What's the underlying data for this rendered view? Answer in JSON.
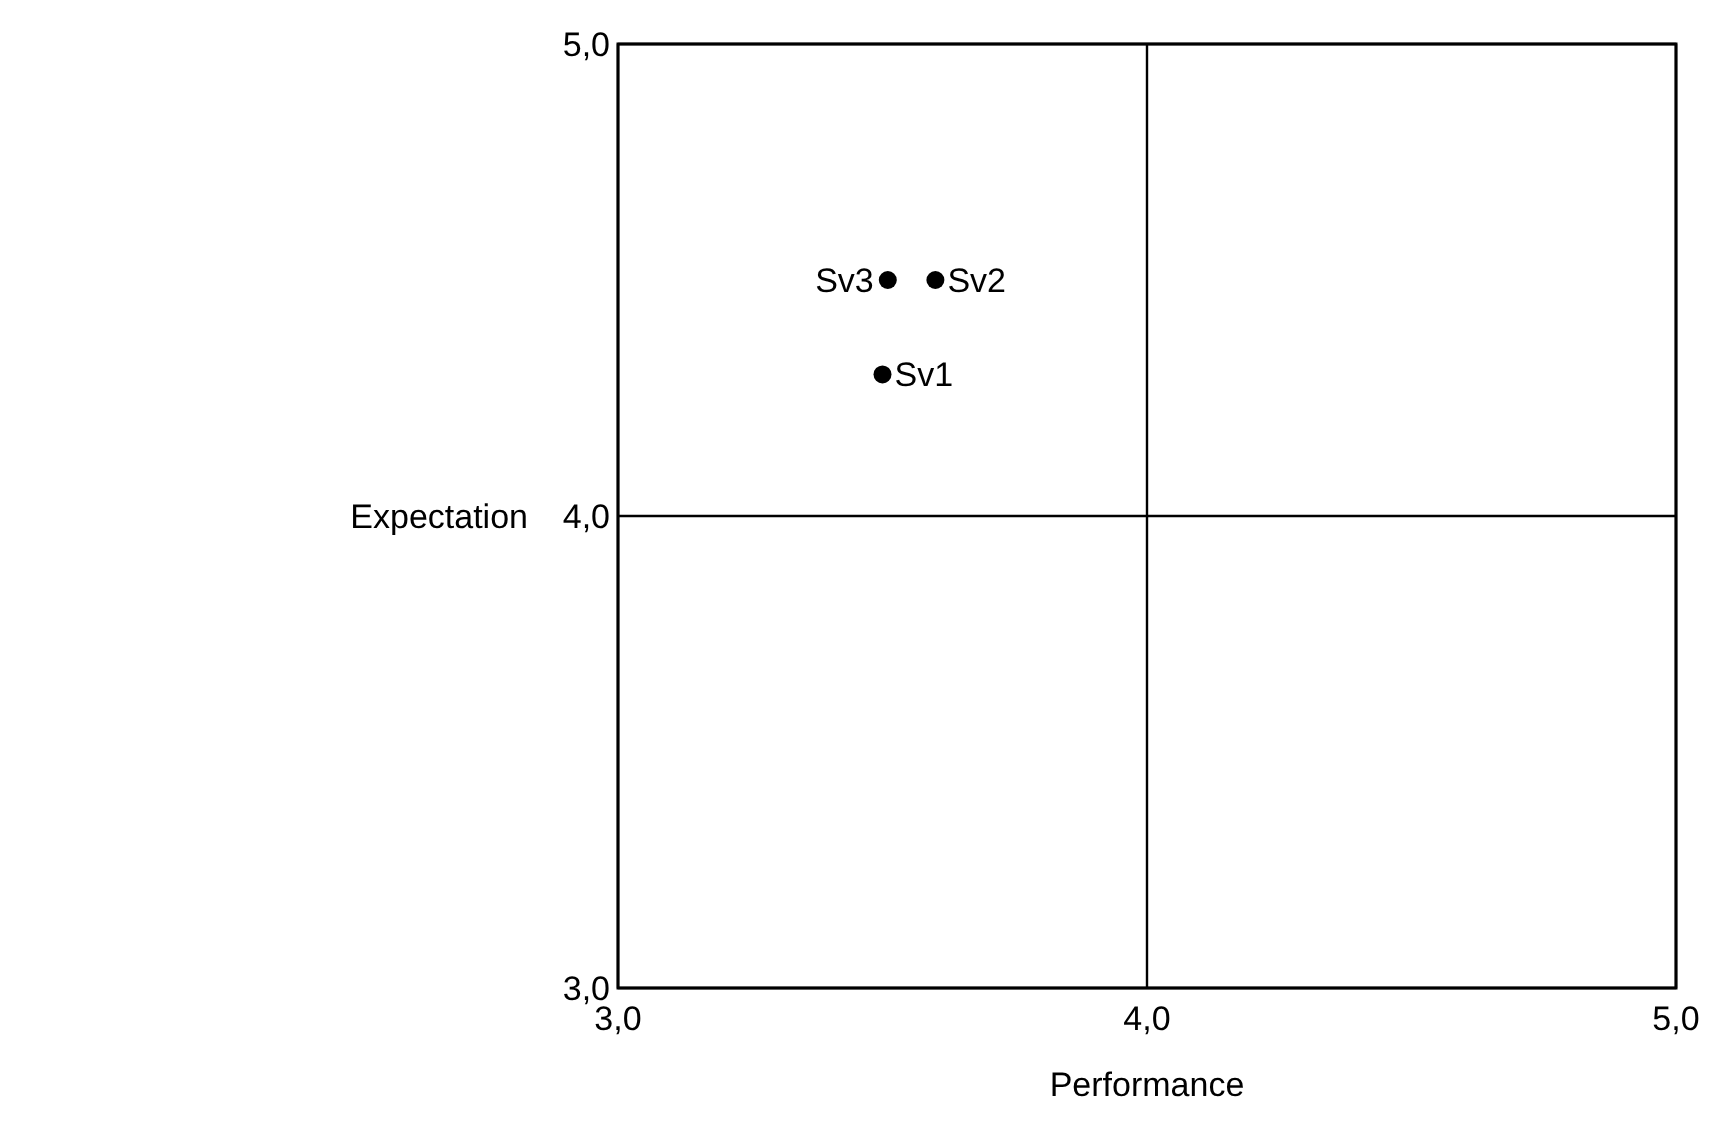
{
  "chart_data": {
    "type": "scatter",
    "xlabel": "Performance",
    "ylabel": "Expectation",
    "x": [
      3.5,
      3.51,
      3.6
    ],
    "values": [
      4.3,
      4.5,
      4.5
    ],
    "color": "#000000",
    "marker": "circle",
    "xlim": [
      3,
      5
    ],
    "ylim": [
      3,
      5
    ],
    "xticks": [
      {
        "value": 3,
        "label": "3,0"
      },
      {
        "value": 4,
        "label": "4,0"
      },
      {
        "value": 5,
        "label": "5,0"
      }
    ],
    "yticks": [
      {
        "value": 3,
        "label": "3,0"
      },
      {
        "value": 4,
        "label": "4,0"
      },
      {
        "value": 5,
        "label": "5,0"
      }
    ],
    "grid": true,
    "annotations": [
      {
        "text": "Sv1",
        "x": 3.5,
        "y": 4.3
      },
      {
        "text": "Sv3",
        "x": 3.51,
        "y": 4.5
      },
      {
        "text": "Sv2",
        "x": 3.6,
        "y": 4.5
      }
    ]
  }
}
